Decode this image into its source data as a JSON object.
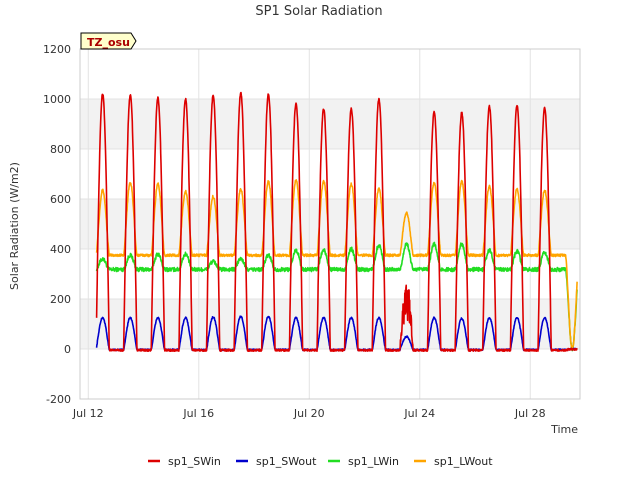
{
  "chart_data": {
    "type": "line",
    "title": "SP1 Solar Radiation",
    "xlabel": "Time",
    "ylabel": "Solar Radiation (W/m2)",
    "site_label": "TZ_osu",
    "x_ticks": [
      "Jul 12",
      "Jul 16",
      "Jul 20",
      "Jul 24",
      "Jul 28"
    ],
    "y_ticks": [
      "-200",
      "0",
      "200",
      "400",
      "600",
      "800",
      "1000",
      "1200"
    ],
    "ylim": [
      -200,
      1200
    ],
    "xlim_days": [
      "2023-07-12",
      "2023-07-30"
    ],
    "grid": true,
    "legend_position": "bottom",
    "days": [
      "Jul 12",
      "Jul 13",
      "Jul 14",
      "Jul 15",
      "Jul 16",
      "Jul 17",
      "Jul 18",
      "Jul 19",
      "Jul 20",
      "Jul 21",
      "Jul 22",
      "Jul 23",
      "Jul 24",
      "Jul 25",
      "Jul 26",
      "Jul 27",
      "Jul 28",
      "Jul 29"
    ],
    "series": [
      {
        "name": "sp1_SWin",
        "color": "#dd0000",
        "stat": "daily_peak",
        "values": [
          1020,
          1015,
          1005,
          1000,
          1015,
          1025,
          1020,
          980,
          960,
          960,
          1000,
          300,
          950,
          945,
          970,
          975,
          965,
          0
        ]
      },
      {
        "name": "sp1_SWout",
        "color": "#0000cc",
        "stat": "daily_peak",
        "values": [
          125,
          125,
          125,
          125,
          128,
          130,
          130,
          125,
          125,
          125,
          125,
          50,
          125,
          122,
          125,
          125,
          125,
          0
        ]
      },
      {
        "name": "sp1_LWin",
        "color": "#22dd22",
        "stat": "daily_peak",
        "values": [
          360,
          375,
          380,
          380,
          350,
          360,
          375,
          395,
          395,
          400,
          415,
          420,
          420,
          420,
          395,
          390,
          385,
          0
        ]
      },
      {
        "name": "sp1_LWout",
        "color": "#ffa500",
        "stat": "daily_peak",
        "values": [
          635,
          665,
          660,
          630,
          610,
          640,
          670,
          675,
          670,
          660,
          640,
          545,
          665,
          670,
          650,
          640,
          635,
          0
        ]
      }
    ]
  }
}
